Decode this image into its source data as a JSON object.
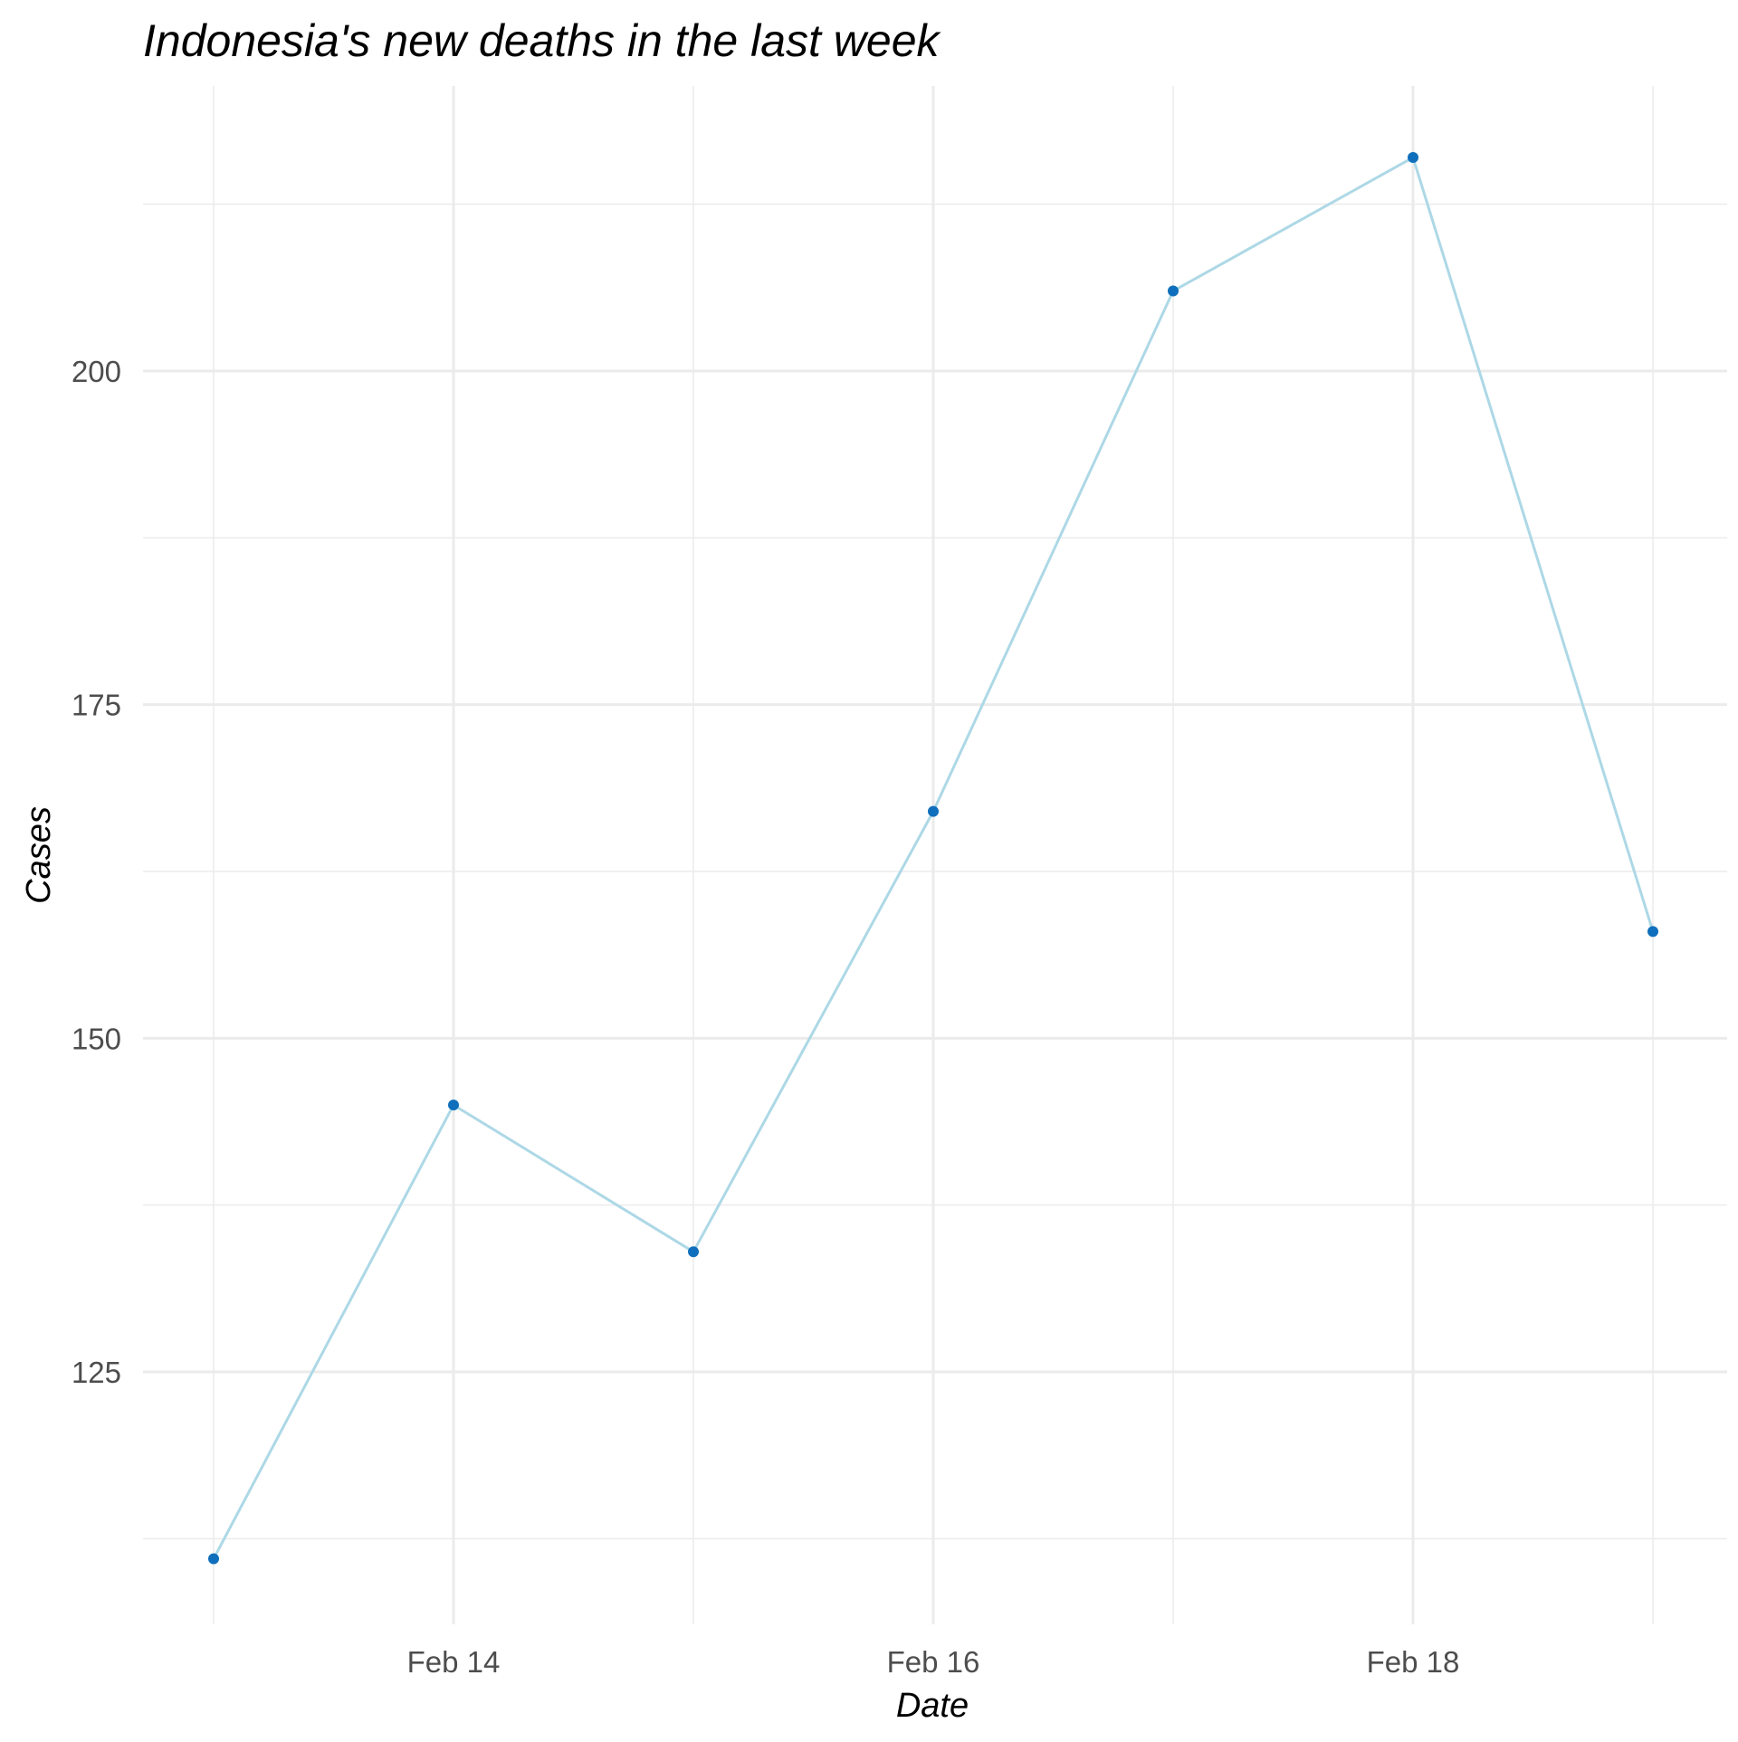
{
  "chart_data": {
    "type": "line",
    "title": "Indonesia's new deaths in the last week",
    "xlabel": "Date",
    "ylabel": "Cases",
    "x": [
      "Feb 13",
      "Feb 14",
      "Feb 15",
      "Feb 16",
      "Feb 17",
      "Feb 18",
      "Feb 19"
    ],
    "x_ticks": [
      "Feb 14",
      "Feb 16",
      "Feb 18"
    ],
    "y_ticks": [
      125,
      150,
      175,
      200
    ],
    "ylim": [
      108,
      224
    ],
    "series": [
      {
        "values": [
          111,
          145,
          134,
          167,
          206,
          216,
          158
        ]
      }
    ],
    "grid": true,
    "legend": "none",
    "colors": {
      "line": "#add8e6",
      "point": "#0f6fbc",
      "grid": "#ebebeb",
      "tick_text": "#4d4d4d"
    }
  }
}
